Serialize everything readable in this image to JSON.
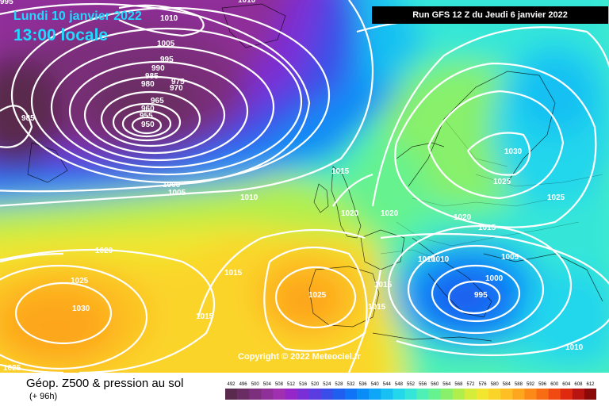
{
  "header": {
    "date_line": "Lundi 10 janvier 2022",
    "time_line": "13:00 locale",
    "run_info": "Run GFS 12 Z du Jeudi 6 janvier 2022"
  },
  "copyright": "Copyright © 2022 Meteociel.fr",
  "caption": {
    "title": "Géop. Z500 & pression au sol",
    "forecast": "(+ 96h)"
  },
  "legend": {
    "values": [
      "492",
      "496",
      "500",
      "504",
      "508",
      "512",
      "516",
      "520",
      "524",
      "528",
      "532",
      "536",
      "540",
      "544",
      "548",
      "552",
      "556",
      "560",
      "564",
      "568",
      "572",
      "576",
      "580",
      "584",
      "588",
      "592",
      "596",
      "600",
      "604",
      "608",
      "612"
    ],
    "colors": [
      "#5a2a4e",
      "#6a2d63",
      "#7c2f7c",
      "#8f2f98",
      "#a030b0",
      "#9626c8",
      "#7a2fd6",
      "#5a3ce0",
      "#3b4de8",
      "#1f5fef",
      "#1173f5",
      "#0a8cf6",
      "#0ea6f6",
      "#16c0f2",
      "#23d6ec",
      "#35e6d8",
      "#4ef0b5",
      "#66f28e",
      "#88f06a",
      "#b0ee4e",
      "#d6ec3a",
      "#f2e62e",
      "#fbd42a",
      "#fdbf24",
      "#fda61e",
      "#fb8a18",
      "#f86c14",
      "#f04a12",
      "#e02a10",
      "#b81410",
      "#8a0a0a"
    ]
  },
  "isobars": [
    {
      "label": "1010",
      "color": "white"
    },
    {
      "label": "1005",
      "color": "white"
    },
    {
      "label": "995",
      "color": "white"
    },
    {
      "label": "990",
      "color": "white"
    },
    {
      "label": "985",
      "color": "white"
    },
    {
      "label": "980",
      "color": "white"
    },
    {
      "label": "975",
      "color": "white"
    },
    {
      "label": "970",
      "color": "white"
    },
    {
      "label": "965",
      "color": "white"
    },
    {
      "label": "960",
      "color": "white"
    },
    {
      "label": "955",
      "color": "white"
    },
    {
      "label": "950",
      "color": "white"
    },
    {
      "label": "985",
      "color": "white"
    },
    {
      "label": "1000",
      "color": "white"
    },
    {
      "label": "1005",
      "color": "white"
    },
    {
      "label": "1010",
      "color": "white"
    },
    {
      "label": "1015",
      "color": "white"
    },
    {
      "label": "1020",
      "color": "white"
    },
    {
      "label": "1020",
      "color": "white"
    },
    {
      "label": "1020",
      "color": "white"
    },
    {
      "label": "1025",
      "color": "white"
    },
    {
      "label": "1030",
      "color": "white"
    },
    {
      "label": "1025",
      "color": "white"
    },
    {
      "label": "1020",
      "color": "white"
    },
    {
      "label": "1015",
      "color": "white"
    },
    {
      "label": "1010",
      "color": "white"
    },
    {
      "label": "1010",
      "color": "white"
    },
    {
      "label": "1005",
      "color": "white"
    },
    {
      "label": "1000",
      "color": "white"
    },
    {
      "label": "995",
      "color": "white"
    },
    {
      "label": "1015",
      "color": "white"
    },
    {
      "label": "1015",
      "color": "white"
    },
    {
      "label": "1025",
      "color": "white"
    },
    {
      "label": "1015",
      "color": "white"
    },
    {
      "label": "1025",
      "color": "white"
    },
    {
      "label": "1030",
      "color": "white"
    },
    {
      "label": "1015",
      "color": "white"
    },
    {
      "label": "1025",
      "color": "white"
    },
    {
      "label": "1010",
      "color": "white"
    },
    {
      "label": "995",
      "color": "white"
    },
    {
      "label": "1010",
      "color": "white"
    }
  ]
}
